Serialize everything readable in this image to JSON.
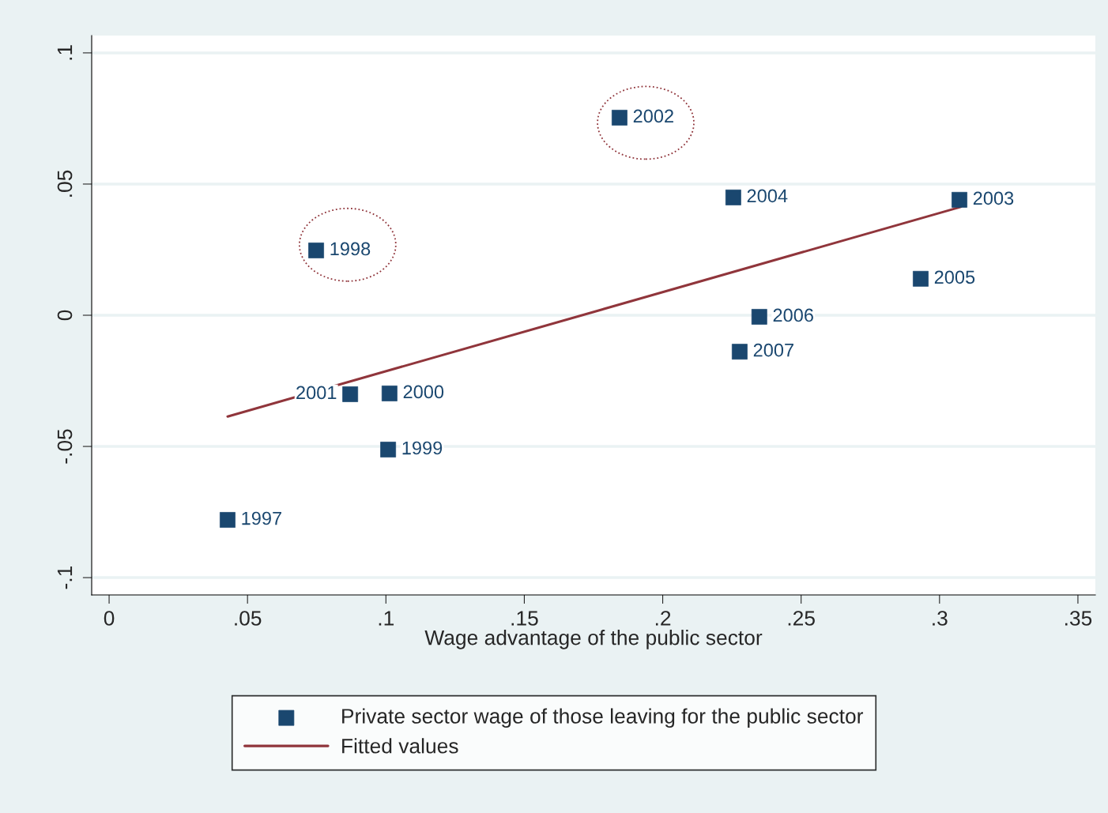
{
  "chart_data": {
    "type": "scatter",
    "xlabel": "Wage advantage of the public sector",
    "xlim": [
      -0.0063,
      0.3563
    ],
    "ylim": [
      -0.1066,
      0.1066
    ],
    "xticks": [
      {
        "value": 0,
        "label": "0"
      },
      {
        "value": 0.05,
        "label": ".05"
      },
      {
        "value": 0.1,
        "label": ".1"
      },
      {
        "value": 0.15,
        "label": ".15"
      },
      {
        "value": 0.2,
        "label": ".2"
      },
      {
        "value": 0.25,
        "label": ".25"
      },
      {
        "value": 0.3,
        "label": ".3"
      },
      {
        "value": 0.35,
        "label": ".35"
      }
    ],
    "yticks": [
      {
        "value": -0.1,
        "label": "-.1"
      },
      {
        "value": -0.05,
        "label": "-.05"
      },
      {
        "value": 0,
        "label": "0"
      },
      {
        "value": 0.05,
        "label": ".05"
      },
      {
        "value": 0.1,
        "label": ".1"
      }
    ],
    "grid": "y",
    "legend": "bottom",
    "series": [
      {
        "name": "Private sector wage of those leaving for the public sector",
        "color": "#1a476f",
        "marker": "square",
        "x": [
          0.0428,
          0.0748,
          0.1008,
          0.1013,
          0.0871,
          0.1844,
          0.3072,
          0.2255,
          0.2932,
          0.2349,
          0.2278
        ],
        "values": [
          -0.078,
          0.0247,
          -0.0512,
          -0.0298,
          -0.0301,
          0.0753,
          0.044,
          0.0449,
          0.0139,
          -0.0006,
          -0.0139
        ]
      },
      {
        "type": "line",
        "name": "Fitted values",
        "color": "#90353b",
        "x": [
          0.0428,
          0.3077
        ],
        "values": [
          -0.0386,
          0.0413
        ]
      }
    ],
    "annotations": [
      {
        "text": "1997",
        "x": 0.0428,
        "y": -0.078
      },
      {
        "text": "1998",
        "x": 0.0748,
        "y": 0.0247
      },
      {
        "text": "1999",
        "x": 0.1008,
        "y": -0.0512
      },
      {
        "text": "2000",
        "x": 0.1013,
        "y": -0.0298
      },
      {
        "text": "2001",
        "x": 0.0871,
        "y": -0.0301
      },
      {
        "text": "2002",
        "x": 0.1844,
        "y": 0.0753
      },
      {
        "text": "2003",
        "x": 0.3072,
        "y": 0.044
      },
      {
        "text": "2004",
        "x": 0.2255,
        "y": 0.0449
      },
      {
        "text": "2005",
        "x": 0.2932,
        "y": 0.0139
      },
      {
        "text": "2006",
        "x": 0.2349,
        "y": -0.0006
      },
      {
        "text": "2007",
        "x": 0.2278,
        "y": -0.0139
      }
    ]
  }
}
